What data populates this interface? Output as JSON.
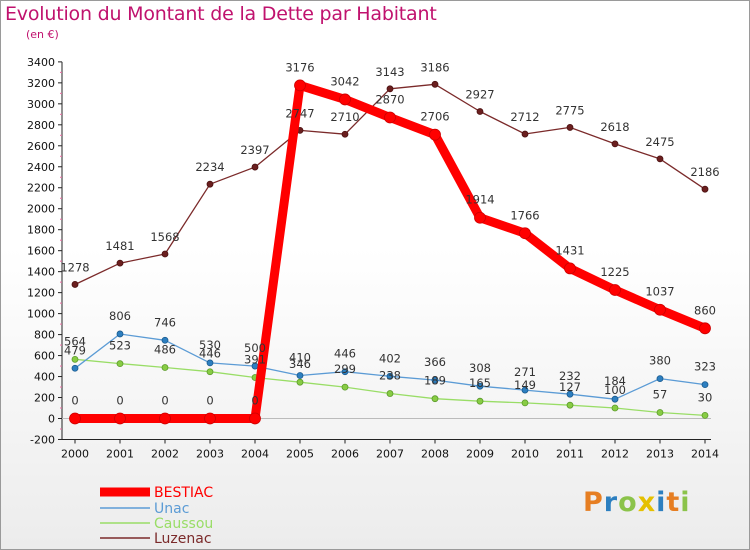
{
  "title": "Evolution du Montant de la Dette par Habitant",
  "subtitle": "(en €)",
  "brand": {
    "text": "Proxiti",
    "letter_colors": [
      "#e67e22",
      "#2c7fc0",
      "#8bc34a",
      "#e5c000",
      "#2c7fc0",
      "#e67e22",
      "#8bc34a"
    ]
  },
  "chart_data": {
    "type": "line",
    "title": "Evolution du Montant de la Dette par Habitant",
    "subtitle": "(en €)",
    "xlabel": "",
    "ylabel": "",
    "categories": [
      "2000",
      "2001",
      "2002",
      "2003",
      "2004",
      "2005",
      "2006",
      "2007",
      "2008",
      "2009",
      "2010",
      "2011",
      "2012",
      "2013",
      "2014"
    ],
    "ylim": [
      -200,
      3400
    ],
    "yticks": [
      -200,
      0,
      200,
      400,
      600,
      800,
      1000,
      1200,
      1400,
      1600,
      1800,
      2000,
      2200,
      2400,
      2600,
      2800,
      3000,
      3200,
      3400
    ],
    "grid": false,
    "legend_position": "bottom-left",
    "series": [
      {
        "name": "BESTIAC",
        "color": "#ff0000",
        "values": [
          0,
          0,
          0,
          0,
          0,
          3176,
          3042,
          2870,
          2706,
          1914,
          1766,
          1431,
          1225,
          1037,
          860
        ]
      },
      {
        "name": "Unac",
        "color": "#5b9bd5",
        "values": [
          479,
          806,
          746,
          530,
          500,
          410,
          446,
          402,
          366,
          308,
          271,
          232,
          184,
          380,
          323
        ]
      },
      {
        "name": "Caussou",
        "color": "#99dd66",
        "values": [
          564,
          523,
          486,
          446,
          391,
          346,
          299,
          238,
          189,
          165,
          149,
          127,
          100,
          57,
          30
        ]
      },
      {
        "name": "Luzenac",
        "color": "#7b2a2a",
        "values": [
          1278,
          1481,
          1568,
          2234,
          2397,
          2747,
          2710,
          3143,
          3186,
          2927,
          2712,
          2775,
          2618,
          2475,
          2186
        ]
      }
    ]
  }
}
